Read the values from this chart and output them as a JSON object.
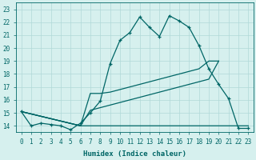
{
  "title": "",
  "xlabel": "Humidex (Indice chaleur)",
  "ylabel": "",
  "background_color": "#d6f0ee",
  "grid_color": "#b0d8d8",
  "line_color": "#006666",
  "xlim": [
    -0.5,
    23.5
  ],
  "ylim": [
    13.5,
    23.5
  ],
  "xticks": [
    0,
    1,
    2,
    3,
    4,
    5,
    6,
    7,
    8,
    9,
    10,
    11,
    12,
    13,
    14,
    15,
    16,
    17,
    18,
    19,
    20,
    21,
    22,
    23
  ],
  "yticks": [
    14,
    15,
    16,
    17,
    18,
    19,
    20,
    21,
    22,
    23
  ],
  "curve1_x": [
    0,
    1,
    2,
    3,
    4,
    5,
    6,
    7,
    8,
    9,
    10,
    11,
    12,
    13,
    14,
    15,
    16,
    17,
    18,
    19,
    20,
    21,
    22,
    23
  ],
  "curve1_y": [
    15.1,
    14.0,
    14.2,
    14.1,
    14.0,
    13.7,
    14.2,
    15.0,
    15.9,
    18.8,
    20.6,
    21.2,
    22.4,
    21.6,
    20.9,
    22.5,
    22.1,
    21.6,
    20.2,
    18.4,
    17.2,
    16.1,
    13.8,
    13.8
  ],
  "curve2_x": [
    0,
    6,
    6,
    19,
    19,
    23
  ],
  "curve2_y": [
    15.1,
    14.0,
    14.0,
    14.0,
    14.0,
    14.0
  ],
  "curve3_x": [
    0,
    6,
    7,
    8,
    9,
    10,
    11,
    12,
    13,
    14,
    15,
    16,
    17,
    18,
    19,
    20
  ],
  "curve3_y": [
    15.1,
    14.0,
    16.5,
    16.5,
    16.6,
    16.8,
    17.0,
    17.2,
    17.4,
    17.6,
    17.8,
    18.0,
    18.2,
    18.4,
    19.0,
    19.0
  ],
  "curve4_x": [
    0,
    6,
    7,
    8,
    9,
    10,
    11,
    12,
    13,
    14,
    15,
    16,
    17,
    18,
    19,
    20
  ],
  "curve4_y": [
    15.1,
    14.0,
    15.2,
    15.4,
    15.6,
    15.8,
    16.0,
    16.2,
    16.4,
    16.6,
    16.8,
    17.0,
    17.2,
    17.4,
    17.6,
    19.0
  ]
}
